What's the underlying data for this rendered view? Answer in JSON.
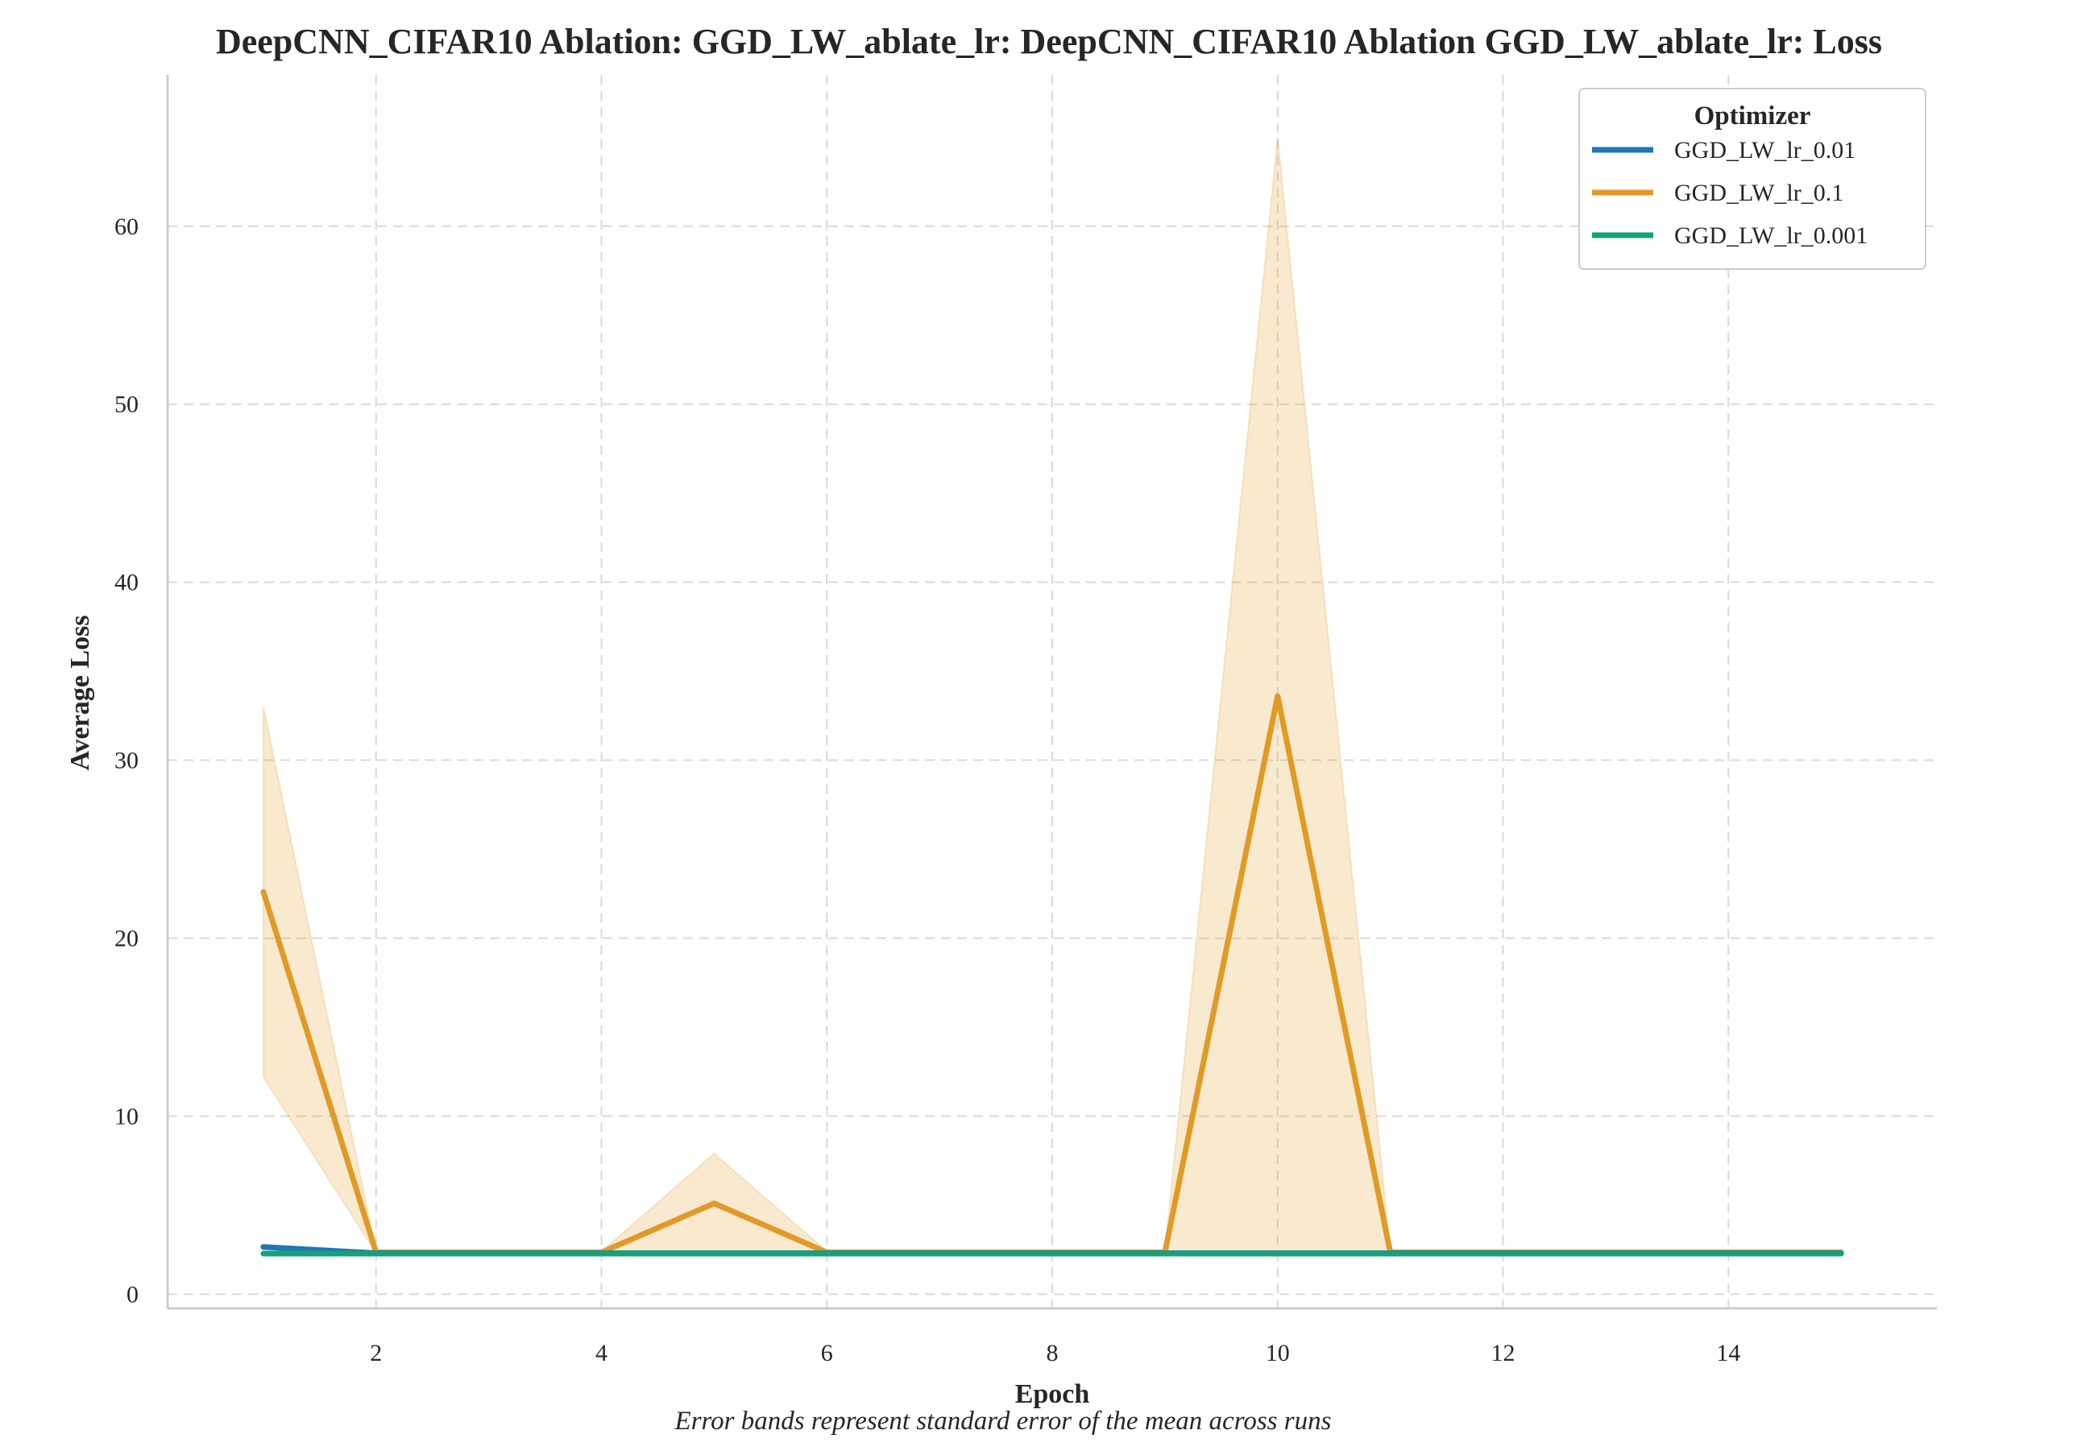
{
  "chart_data": {
    "type": "line",
    "title": "DeepCNN_CIFAR10 Ablation: GGD_LW_ablate_lr: DeepCNN_CIFAR10 Ablation GGD_LW_ablate_lr: Loss",
    "xlabel": "Epoch",
    "ylabel": "Average Loss",
    "caption": "Error bands represent standard error of the mean across runs",
    "xlim": [
      0.15,
      15.85
    ],
    "ylim": [
      -0.8,
      68.5
    ],
    "xticks": [
      2,
      4,
      6,
      8,
      10,
      12,
      14
    ],
    "yticks": [
      0,
      10,
      20,
      30,
      40,
      50,
      60
    ],
    "grid": true,
    "legend": {
      "title": "Optimizer",
      "position": "top-right"
    },
    "x": [
      1,
      2,
      3,
      4,
      5,
      6,
      7,
      8,
      9,
      10,
      11,
      12,
      13,
      14,
      15
    ],
    "series": [
      {
        "name": "GGD_LW_lr_0.01",
        "color": "#1f77b4",
        "values": [
          2.65,
          2.3,
          2.3,
          2.3,
          2.3,
          2.3,
          2.3,
          2.3,
          2.3,
          2.3,
          2.3,
          2.3,
          2.3,
          2.3,
          2.3
        ],
        "lower": [
          2.55,
          2.28,
          2.28,
          2.28,
          2.28,
          2.28,
          2.28,
          2.28,
          2.28,
          2.28,
          2.28,
          2.28,
          2.28,
          2.28,
          2.28
        ],
        "upper": [
          2.75,
          2.32,
          2.32,
          2.32,
          2.32,
          2.32,
          2.32,
          2.32,
          2.32,
          2.32,
          2.32,
          2.32,
          2.32,
          2.32,
          2.32
        ]
      },
      {
        "name": "GGD_LW_lr_0.1",
        "color": "#e09b26",
        "values": [
          22.6,
          2.35,
          2.35,
          2.35,
          5.1,
          2.35,
          2.35,
          2.35,
          2.35,
          33.6,
          2.35,
          2.35,
          2.35,
          2.35,
          2.35
        ],
        "lower": [
          12.2,
          2.3,
          2.3,
          2.3,
          2.3,
          2.3,
          2.3,
          2.3,
          2.3,
          2.3,
          2.3,
          2.3,
          2.3,
          2.3,
          2.3
        ],
        "upper": [
          33.0,
          2.4,
          2.4,
          2.4,
          7.9,
          2.4,
          2.4,
          2.4,
          2.4,
          65.0,
          2.4,
          2.4,
          2.4,
          2.4,
          2.4
        ]
      },
      {
        "name": "GGD_LW_lr_0.001",
        "color": "#17a07a",
        "values": [
          2.28,
          2.28,
          2.28,
          2.28,
          2.28,
          2.28,
          2.28,
          2.28,
          2.28,
          2.28,
          2.28,
          2.28,
          2.28,
          2.28,
          2.28
        ],
        "lower": [
          2.26,
          2.26,
          2.26,
          2.26,
          2.26,
          2.26,
          2.26,
          2.26,
          2.26,
          2.26,
          2.26,
          2.26,
          2.26,
          2.26,
          2.26
        ],
        "upper": [
          2.3,
          2.3,
          2.3,
          2.3,
          2.3,
          2.3,
          2.3,
          2.3,
          2.3,
          2.3,
          2.3,
          2.3,
          2.3,
          2.3,
          2.3
        ]
      }
    ]
  }
}
